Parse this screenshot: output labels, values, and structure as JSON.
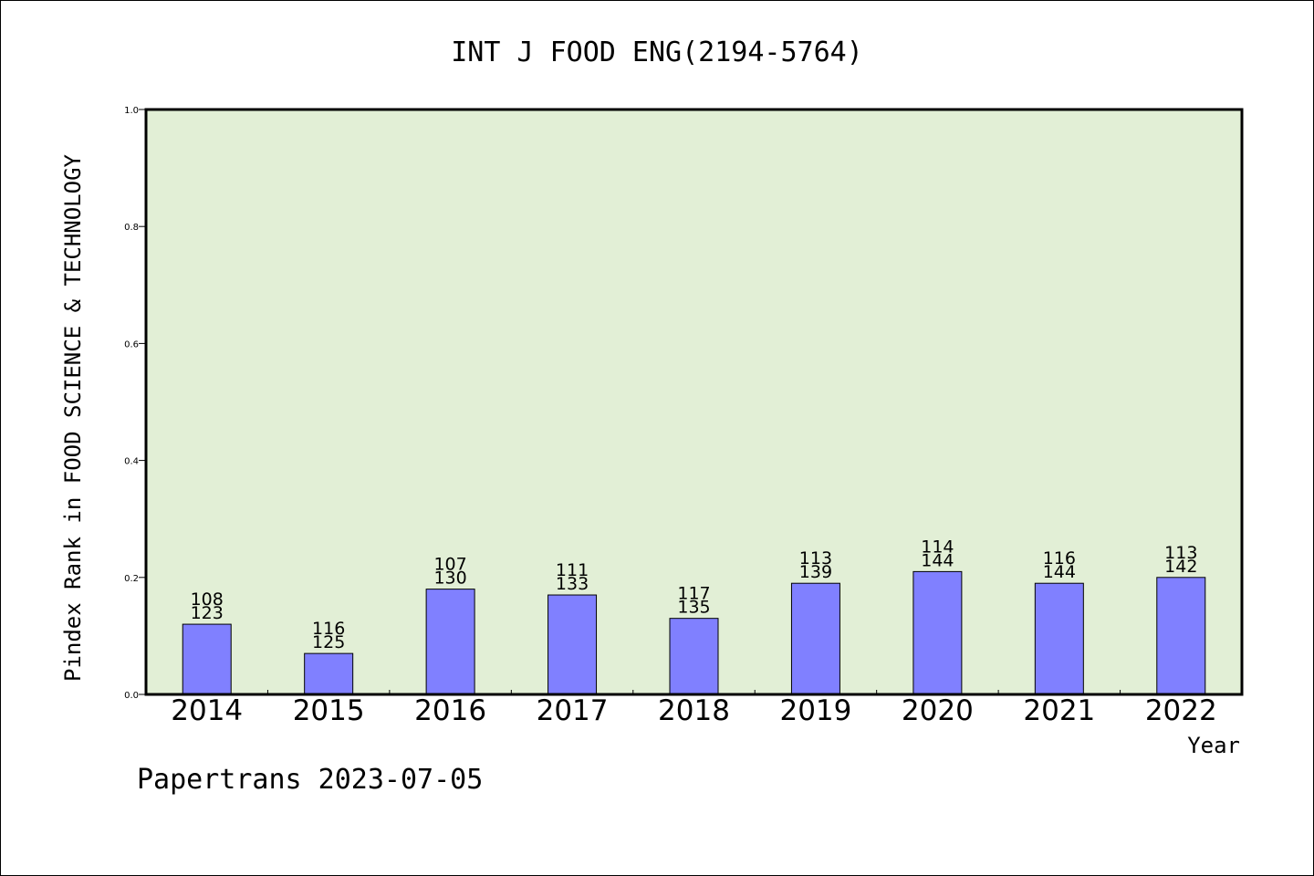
{
  "chart_data": {
    "type": "bar",
    "title": "INT J FOOD ENG(2194-5764)",
    "xlabel": "Year",
    "ylabel": "Pindex Rank in FOOD SCIENCE & TECHNOLOGY",
    "ylim": [
      0,
      1.0
    ],
    "yticks": [
      "0.0",
      "0.2",
      "0.4",
      "0.6",
      "0.8",
      "1.0"
    ],
    "categories": [
      "2014",
      "2015",
      "2016",
      "2017",
      "2018",
      "2019",
      "2020",
      "2021",
      "2022"
    ],
    "values": [
      0.12,
      0.07,
      0.18,
      0.17,
      0.13,
      0.19,
      0.21,
      0.19,
      0.2
    ],
    "label_top": [
      "108",
      "116",
      "107",
      "111",
      "117",
      "113",
      "114",
      "116",
      "113"
    ],
    "label_bottom": [
      "123",
      "125",
      "130",
      "133",
      "135",
      "139",
      "144",
      "144",
      "142"
    ],
    "grid": false,
    "legend": "none"
  },
  "footer": "Papertrans 2023-07-05",
  "colors": {
    "plot_bg": "#e2efd6",
    "bar_fill": "#8080ff",
    "bar_stroke": "#000000",
    "axis": "#000000"
  }
}
